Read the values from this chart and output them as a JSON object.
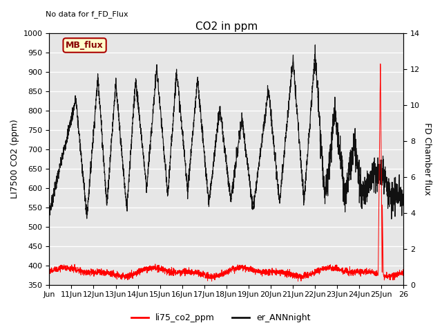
{
  "title": "CO2 in ppm",
  "top_left_text": "No data for f_FD_Flux",
  "ylabel_left": "LI7500 CO2 (ppm)",
  "ylabel_right": "FD Chamber flux",
  "ylim_left": [
    350,
    1000
  ],
  "ylim_right": [
    0,
    14
  ],
  "yticks_left": [
    350,
    400,
    450,
    500,
    550,
    600,
    650,
    700,
    750,
    800,
    850,
    900,
    950,
    1000
  ],
  "yticks_right": [
    0,
    2,
    4,
    6,
    8,
    10,
    12,
    14
  ],
  "xlim": [
    10,
    26
  ],
  "xtick_positions": [
    10,
    11,
    12,
    13,
    14,
    15,
    16,
    17,
    18,
    19,
    20,
    21,
    22,
    23,
    24,
    25,
    26
  ],
  "xtick_labels": [
    "Jun",
    "11Jun",
    "12Jun",
    "13Jun",
    "14Jun",
    "15Jun",
    "16Jun",
    "17Jun",
    "18Jun",
    "19Jun",
    "20Jun",
    "21Jun",
    "22Jun",
    "23Jun",
    "24Jun",
    "25Jun",
    "26"
  ],
  "plot_bg_color": "#e6e6e6",
  "fig_bg_color": "#ffffff",
  "legend_entries": [
    "li75_co2_ppm",
    "er_ANNnight"
  ],
  "legend_colors": [
    "red",
    "#111111"
  ],
  "mb_flux_label": "MB_flux",
  "mb_flux_box_color": "#ffffcc",
  "mb_flux_border_color": "#aa0000",
  "mb_flux_text_color": "#880000",
  "title_fontsize": 11,
  "axis_label_fontsize": 9,
  "tick_fontsize": 8
}
